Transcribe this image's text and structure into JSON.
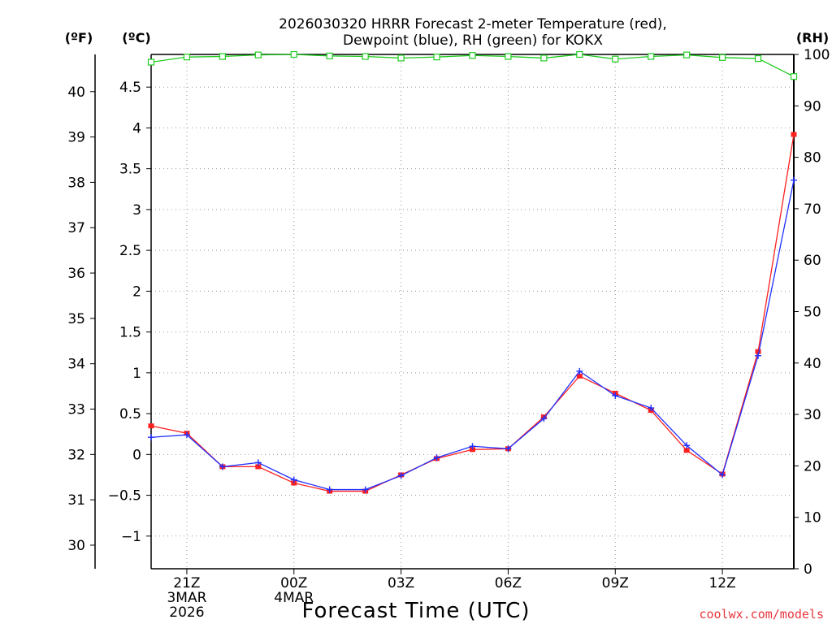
{
  "chart_data": {
    "type": "line",
    "title_line1": "2026030320 HRRR Forecast 2-meter Temperature (red),",
    "title_line2": "Dewpoint (blue), RH (green) for KOKX",
    "xlabel": "Forecast Time (UTC)",
    "credit": "coolwx.com/models",
    "unit_f": "(ºF)",
    "unit_c": "(ºC)",
    "unit_rh": "(RH)",
    "forecast_hours": [
      0,
      1,
      2,
      3,
      4,
      5,
      6,
      7,
      8,
      9,
      10,
      11,
      12,
      13,
      14,
      15,
      16,
      17,
      18
    ],
    "x_ticks": [
      {
        "hour": 1,
        "lines": [
          "21Z",
          "3MAR",
          "2026"
        ]
      },
      {
        "hour": 4,
        "lines": [
          "00Z",
          "4MAR"
        ]
      },
      {
        "hour": 7,
        "lines": [
          "03Z"
        ]
      },
      {
        "hour": 10,
        "lines": [
          "06Z"
        ]
      },
      {
        "hour": 13,
        "lines": [
          "09Z"
        ]
      },
      {
        "hour": 16,
        "lines": [
          "12Z"
        ]
      }
    ],
    "celsius_axis": {
      "range": [
        -1.4,
        4.9
      ],
      "ticks": [
        -1,
        -0.5,
        0,
        0.5,
        1,
        1.5,
        2,
        2.5,
        3,
        3.5,
        4,
        4.5
      ],
      "tick_labels": [
        "−1",
        "−0.5",
        "0",
        "0.5",
        "1",
        "1.5",
        "2",
        "2.5",
        "3",
        "3.5",
        "4",
        "4.5"
      ]
    },
    "fahrenheit_axis": {
      "ticks": [
        30,
        31,
        32,
        33,
        34,
        35,
        36,
        37,
        38,
        39,
        40
      ],
      "tick_labels": [
        "30",
        "31",
        "32",
        "33",
        "34",
        "35",
        "36",
        "37",
        "38",
        "39",
        "40"
      ]
    },
    "rh_axis": {
      "range": [
        0,
        100
      ],
      "ticks": [
        0,
        10,
        20,
        30,
        40,
        50,
        60,
        70,
        80,
        90,
        100
      ],
      "tick_labels": [
        "0",
        "10",
        "20",
        "30",
        "40",
        "50",
        "60",
        "70",
        "80",
        "90",
        "100"
      ]
    },
    "series": [
      {
        "name": "Temperature",
        "unit": "C",
        "color": "#ff2020",
        "values": [
          0.35,
          0.26,
          -0.15,
          -0.15,
          -0.35,
          -0.45,
          -0.45,
          -0.25,
          -0.05,
          0.06,
          0.07,
          0.46,
          0.96,
          0.75,
          0.54,
          0.05,
          -0.24,
          1.26,
          3.92
        ]
      },
      {
        "name": "Dewpoint",
        "unit": "C",
        "color": "#2030ff",
        "values": [
          0.21,
          0.24,
          -0.15,
          -0.1,
          -0.31,
          -0.43,
          -0.43,
          -0.26,
          -0.04,
          0.1,
          0.07,
          0.44,
          1.02,
          0.72,
          0.57,
          0.11,
          -0.25,
          1.21,
          3.36
        ]
      },
      {
        "name": "RH",
        "unit": "%",
        "color": "#20cc20",
        "values": [
          98.5,
          99.5,
          99.6,
          99.9,
          100,
          99.7,
          99.6,
          99.3,
          99.5,
          99.8,
          99.6,
          99.3,
          100,
          99.1,
          99.6,
          99.9,
          99.4,
          99.2,
          95.7
        ]
      }
    ]
  }
}
